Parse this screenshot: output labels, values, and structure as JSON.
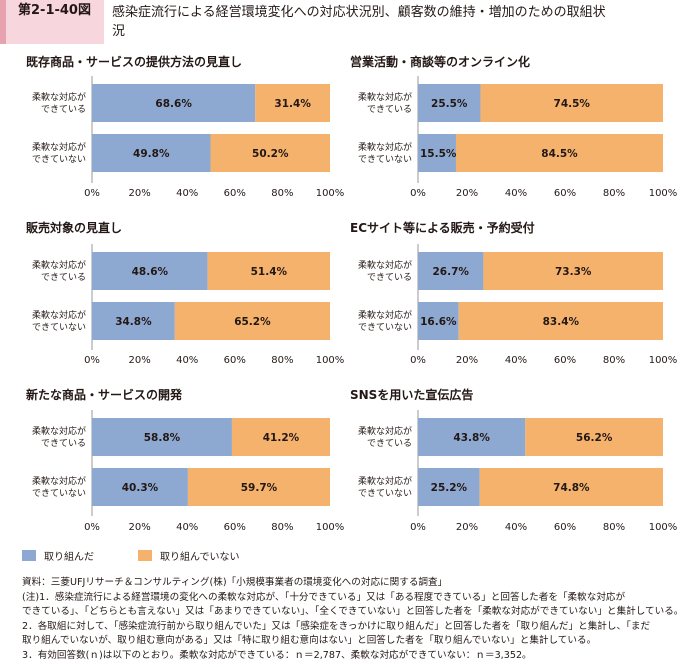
{
  "header": {
    "figure_number": "第2-1-40図",
    "title_line1": "感染症流行による経営環境変化への対応状況別、顧客数の維持・増加のための取組状",
    "title_line2": "況"
  },
  "colors": {
    "adopted": "#8ea9d1",
    "not_adopted": "#f5b26c",
    "label_text": "#231815"
  },
  "chart_data": [
    {
      "type": "bar",
      "orientation": "horizontal",
      "stacked": true,
      "title": "既存商品・サービスの提供方法の見直し",
      "categories": [
        "柔軟な対応が\nできている",
        "柔軟な対応が\nできていない"
      ],
      "series": [
        {
          "name": "取り組んだ",
          "values": [
            68.6,
            49.8
          ]
        },
        {
          "name": "取り組んでいない",
          "values": [
            31.4,
            50.2
          ]
        }
      ],
      "xlim": [
        0,
        100
      ],
      "xticks": [
        "0%",
        "20%",
        "40%",
        "60%",
        "80%",
        "100%"
      ]
    },
    {
      "type": "bar",
      "orientation": "horizontal",
      "stacked": true,
      "title": "営業活動・商談等のオンライン化",
      "categories": [
        "柔軟な対応が\nできている",
        "柔軟な対応が\nできていない"
      ],
      "series": [
        {
          "name": "取り組んだ",
          "values": [
            25.5,
            15.5
          ]
        },
        {
          "name": "取り組んでいない",
          "values": [
            74.5,
            84.5
          ]
        }
      ],
      "xlim": [
        0,
        100
      ],
      "xticks": [
        "0%",
        "20%",
        "40%",
        "60%",
        "80%",
        "100%"
      ]
    },
    {
      "type": "bar",
      "orientation": "horizontal",
      "stacked": true,
      "title": "販売対象の見直し",
      "categories": [
        "柔軟な対応が\nできている",
        "柔軟な対応が\nできていない"
      ],
      "series": [
        {
          "name": "取り組んだ",
          "values": [
            48.6,
            34.8
          ]
        },
        {
          "name": "取り組んでいない",
          "values": [
            51.4,
            65.2
          ]
        }
      ],
      "xlim": [
        0,
        100
      ],
      "xticks": [
        "0%",
        "20%",
        "40%",
        "60%",
        "80%",
        "100%"
      ]
    },
    {
      "type": "bar",
      "orientation": "horizontal",
      "stacked": true,
      "title": "ECサイト等による販売・予約受付",
      "categories": [
        "柔軟な対応が\nできている",
        "柔軟な対応が\nできていない"
      ],
      "series": [
        {
          "name": "取り組んだ",
          "values": [
            26.7,
            16.6
          ]
        },
        {
          "name": "取り組んでいない",
          "values": [
            73.3,
            83.4
          ]
        }
      ],
      "xlim": [
        0,
        100
      ],
      "xticks": [
        "0%",
        "20%",
        "40%",
        "60%",
        "80%",
        "100%"
      ]
    },
    {
      "type": "bar",
      "orientation": "horizontal",
      "stacked": true,
      "title": "新たな商品・サービスの開発",
      "categories": [
        "柔軟な対応が\nできている",
        "柔軟な対応が\nできていない"
      ],
      "series": [
        {
          "name": "取り組んだ",
          "values": [
            58.8,
            40.3
          ]
        },
        {
          "name": "取り組んでいない",
          "values": [
            41.2,
            59.7
          ]
        }
      ],
      "xlim": [
        0,
        100
      ],
      "xticks": [
        "0%",
        "20%",
        "40%",
        "60%",
        "80%",
        "100%"
      ]
    },
    {
      "type": "bar",
      "orientation": "horizontal",
      "stacked": true,
      "title": "SNSを用いた宣伝広告",
      "categories": [
        "柔軟な対応が\nできている",
        "柔軟な対応が\nできていない"
      ],
      "series": [
        {
          "name": "取り組んだ",
          "values": [
            43.8,
            25.2
          ]
        },
        {
          "name": "取り組んでいない",
          "values": [
            56.2,
            74.8
          ]
        }
      ],
      "xlim": [
        0,
        100
      ],
      "xticks": [
        "0%",
        "20%",
        "40%",
        "60%",
        "80%",
        "100%"
      ]
    }
  ],
  "legend": {
    "adopted": "取り組んだ",
    "not_adopted": "取り組んでいない"
  },
  "notes": [
    "資料：三菱UFJリサーチ＆コンサルティング(株)「小規模事業者の環境変化への対応に関する調査」",
    "(注)1．感染症流行による経営環境の変化への柔軟な対応が、「十分できている」又は「ある程度できている」と回答した者を「柔軟な対応が",
    "できている」、「どちらとも言えない」又は「あまりできていない」、「全くできていない」と回答した者を「柔軟な対応ができていない」と集計している。",
    "2．各取組に対して、「感染症流行前から取り組んでいた」又は「感染症をきっかけに取り組んだ」と回答した者を「取り組んだ」と集計し、「まだ",
    "取り組んでいないが、取り組む意向がある」又は「特に取り組む意向はない」と回答した者を「取り組んでいない」と集計している。",
    "3．有効回答数(ｎ)は以下のとおり。柔軟な対応ができている：ｎ＝2,787、柔軟な対応ができていない：ｎ＝3,352。"
  ]
}
